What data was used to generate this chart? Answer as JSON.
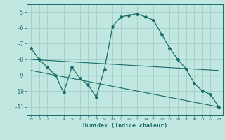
{
  "title": "",
  "xlabel": "Humidex (Indice chaleur)",
  "bg_color": "#c0e8e0",
  "line_color": "#1a6b6b",
  "grid_color": "#a0c8c0",
  "xlim": [
    -0.5,
    23.5
  ],
  "ylim": [
    -11.5,
    -4.5
  ],
  "yticks": [
    -11,
    -10,
    -9,
    -8,
    -7,
    -6,
    -5
  ],
  "xticks": [
    0,
    1,
    2,
    3,
    4,
    5,
    6,
    7,
    8,
    9,
    10,
    11,
    12,
    13,
    14,
    15,
    16,
    17,
    18,
    19,
    20,
    21,
    22,
    23
  ],
  "series1_x": [
    0,
    1,
    2,
    3,
    4,
    5,
    6,
    7,
    8,
    9,
    10,
    11,
    12,
    13,
    14,
    15,
    16,
    17,
    18,
    19,
    20,
    21,
    22,
    23
  ],
  "series1_y": [
    -7.3,
    -8.0,
    -8.5,
    -9.0,
    -10.1,
    -8.5,
    -9.2,
    -9.6,
    -10.4,
    -8.6,
    -5.9,
    -5.3,
    -5.2,
    -5.1,
    -5.3,
    -5.5,
    -6.4,
    -7.3,
    -8.0,
    -8.6,
    -9.5,
    -10.0,
    -10.2,
    -11.0
  ],
  "series2_x": [
    0,
    23
  ],
  "series2_y": [
    -8.0,
    -8.7
  ],
  "series3_x": [
    0,
    23
  ],
  "series3_y": [
    -9.0,
    -9.0
  ],
  "series4_x": [
    0,
    23
  ],
  "series4_y": [
    -8.7,
    -11.0
  ]
}
